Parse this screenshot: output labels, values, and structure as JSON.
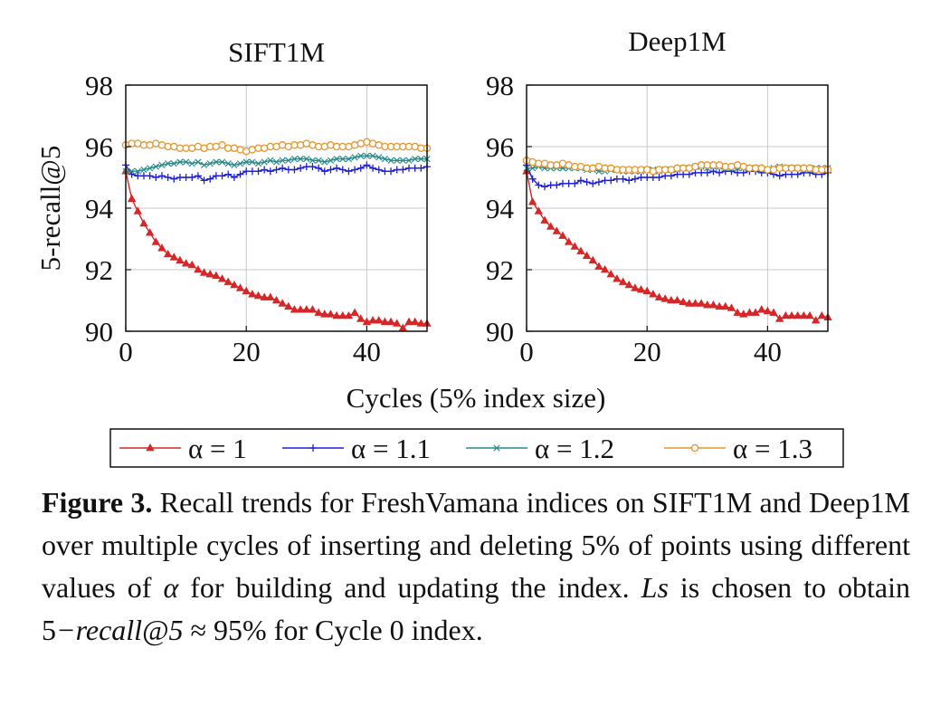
{
  "chart_data": [
    {
      "type": "line",
      "title": "SIFT1M",
      "xlabel": "Cycles (5% index size)",
      "ylabel": "5-recall@5",
      "xlim": [
        0,
        50
      ],
      "ylim": [
        90,
        98
      ],
      "xticks": [
        0,
        20,
        40
      ],
      "yticks": [
        90,
        92,
        94,
        96,
        98
      ],
      "grid": true,
      "series": [
        {
          "name": "α = 1",
          "color": "#d62728",
          "marker": "triangle",
          "x": [
            0,
            1,
            2,
            3,
            4,
            5,
            6,
            7,
            8,
            9,
            10,
            11,
            12,
            13,
            14,
            15,
            16,
            17,
            18,
            19,
            20,
            21,
            22,
            23,
            24,
            25,
            26,
            27,
            28,
            29,
            30,
            31,
            32,
            33,
            34,
            35,
            36,
            37,
            38,
            39,
            40,
            41,
            42,
            43,
            44,
            45,
            46,
            47,
            48,
            49,
            50
          ],
          "y": [
            95.2,
            94.3,
            93.9,
            93.5,
            93.2,
            92.9,
            92.7,
            92.5,
            92.4,
            92.3,
            92.2,
            92.15,
            92.0,
            91.9,
            91.85,
            91.8,
            91.7,
            91.6,
            91.5,
            91.4,
            91.3,
            91.2,
            91.15,
            91.1,
            91.1,
            91.0,
            90.9,
            90.8,
            90.7,
            90.7,
            90.7,
            90.7,
            90.6,
            90.55,
            90.55,
            90.5,
            90.5,
            90.5,
            90.6,
            90.4,
            90.3,
            90.35,
            90.35,
            90.3,
            90.3,
            90.25,
            90.1,
            90.3,
            90.3,
            90.25,
            90.25
          ]
        },
        {
          "name": "α = 1.1",
          "color": "#1f1fd6",
          "marker": "plus",
          "x": [
            0,
            1,
            2,
            3,
            4,
            5,
            6,
            7,
            8,
            9,
            10,
            11,
            12,
            13,
            14,
            15,
            16,
            17,
            18,
            19,
            20,
            21,
            22,
            23,
            24,
            25,
            26,
            27,
            28,
            29,
            30,
            31,
            32,
            33,
            34,
            35,
            36,
            37,
            38,
            39,
            40,
            41,
            42,
            43,
            44,
            45,
            46,
            47,
            48,
            49,
            50
          ],
          "y": [
            95.4,
            95.1,
            95.05,
            95.05,
            95.05,
            95.0,
            95.05,
            95.0,
            94.95,
            95.0,
            95.0,
            95.0,
            95.05,
            94.9,
            94.95,
            95.05,
            95.05,
            95.1,
            95.0,
            95.1,
            95.2,
            95.2,
            95.2,
            95.25,
            95.2,
            95.25,
            95.3,
            95.25,
            95.25,
            95.3,
            95.35,
            95.35,
            95.3,
            95.2,
            95.25,
            95.3,
            95.25,
            95.2,
            95.25,
            95.3,
            95.4,
            95.3,
            95.25,
            95.2,
            95.2,
            95.25,
            95.25,
            95.3,
            95.3,
            95.3,
            95.35
          ]
        },
        {
          "name": "α = 1.2",
          "color": "#2a8a8a",
          "marker": "cross",
          "x": [
            0,
            1,
            2,
            3,
            4,
            5,
            6,
            7,
            8,
            9,
            10,
            11,
            12,
            13,
            14,
            15,
            16,
            17,
            18,
            19,
            20,
            21,
            22,
            23,
            24,
            25,
            26,
            27,
            28,
            29,
            30,
            31,
            32,
            33,
            34,
            35,
            36,
            37,
            38,
            39,
            40,
            41,
            42,
            43,
            44,
            45,
            46,
            47,
            48,
            49,
            50
          ],
          "y": [
            95.2,
            95.2,
            95.2,
            95.25,
            95.3,
            95.35,
            95.4,
            95.45,
            95.45,
            95.5,
            95.5,
            95.45,
            95.5,
            95.4,
            95.45,
            95.5,
            95.5,
            95.45,
            95.4,
            95.45,
            95.5,
            95.5,
            95.45,
            95.5,
            95.55,
            95.5,
            95.55,
            95.55,
            95.6,
            95.6,
            95.6,
            95.55,
            95.55,
            95.5,
            95.55,
            95.6,
            95.6,
            95.6,
            95.65,
            95.7,
            95.7,
            95.7,
            95.65,
            95.6,
            95.55,
            95.55,
            95.55,
            95.55,
            95.6,
            95.6,
            95.6
          ]
        },
        {
          "name": "α = 1.3",
          "color": "#e8952a",
          "marker": "circle",
          "x": [
            0,
            1,
            2,
            3,
            4,
            5,
            6,
            7,
            8,
            9,
            10,
            11,
            12,
            13,
            14,
            15,
            16,
            17,
            18,
            19,
            20,
            21,
            22,
            23,
            24,
            25,
            26,
            27,
            28,
            29,
            30,
            31,
            32,
            33,
            34,
            35,
            36,
            37,
            38,
            39,
            40,
            41,
            42,
            43,
            44,
            45,
            46,
            47,
            48,
            49,
            50
          ],
          "y": [
            96.05,
            96.1,
            96.1,
            96.05,
            96.05,
            96.1,
            96.05,
            96.0,
            96.0,
            95.95,
            95.95,
            95.95,
            96.0,
            95.95,
            96.0,
            96.0,
            96.05,
            95.95,
            95.95,
            95.9,
            95.85,
            95.9,
            95.95,
            95.95,
            96.0,
            96.0,
            96.05,
            96.0,
            96.05,
            96.05,
            96.1,
            96.05,
            96.0,
            96.0,
            96.05,
            96.0,
            96.0,
            96.0,
            96.05,
            96.1,
            96.15,
            96.1,
            96.05,
            96.0,
            96.0,
            96.0,
            96.0,
            96.0,
            96.0,
            95.95,
            95.95
          ]
        }
      ]
    },
    {
      "type": "line",
      "title": "Deep1M",
      "xlabel": "Cycles (5% index size)",
      "ylabel": "",
      "xlim": [
        0,
        50
      ],
      "ylim": [
        90,
        98
      ],
      "xticks": [
        0,
        20,
        40
      ],
      "yticks": [
        90,
        92,
        94,
        96,
        98
      ],
      "grid": true,
      "series": [
        {
          "name": "α = 1",
          "color": "#d62728",
          "marker": "triangle",
          "x": [
            0,
            1,
            2,
            3,
            4,
            5,
            6,
            7,
            8,
            9,
            10,
            11,
            12,
            13,
            14,
            15,
            16,
            17,
            18,
            19,
            20,
            21,
            22,
            23,
            24,
            25,
            26,
            27,
            28,
            29,
            30,
            31,
            32,
            33,
            34,
            35,
            36,
            37,
            38,
            39,
            40,
            41,
            42,
            43,
            44,
            45,
            46,
            47,
            48,
            49,
            50
          ],
          "y": [
            95.2,
            94.2,
            93.9,
            93.6,
            93.4,
            93.25,
            93.1,
            92.9,
            92.75,
            92.6,
            92.45,
            92.3,
            92.1,
            92.0,
            91.85,
            91.7,
            91.6,
            91.5,
            91.4,
            91.35,
            91.3,
            91.2,
            91.1,
            91.05,
            91.0,
            91.0,
            90.95,
            90.9,
            90.9,
            90.9,
            90.85,
            90.85,
            90.8,
            90.8,
            90.75,
            90.6,
            90.55,
            90.6,
            90.6,
            90.7,
            90.65,
            90.6,
            90.4,
            90.5,
            90.5,
            90.5,
            90.5,
            90.5,
            90.35,
            90.5,
            90.45
          ]
        },
        {
          "name": "α = 1.1",
          "color": "#1f1fd6",
          "marker": "plus",
          "x": [
            0,
            1,
            2,
            3,
            4,
            5,
            6,
            7,
            8,
            9,
            10,
            11,
            12,
            13,
            14,
            15,
            16,
            17,
            18,
            19,
            20,
            21,
            22,
            23,
            24,
            25,
            26,
            27,
            28,
            29,
            30,
            31,
            32,
            33,
            34,
            35,
            36,
            37,
            38,
            39,
            40,
            41,
            42,
            43,
            44,
            45,
            46,
            47,
            48,
            49,
            50
          ],
          "y": [
            95.4,
            94.95,
            94.75,
            94.7,
            94.75,
            94.75,
            94.8,
            94.8,
            94.8,
            94.9,
            94.85,
            94.8,
            94.85,
            94.9,
            94.9,
            94.95,
            94.95,
            94.9,
            94.95,
            95.0,
            95.0,
            95.0,
            95.0,
            95.05,
            95.05,
            95.1,
            95.1,
            95.1,
            95.15,
            95.15,
            95.15,
            95.2,
            95.15,
            95.2,
            95.2,
            95.15,
            95.15,
            95.2,
            95.2,
            95.15,
            95.15,
            95.1,
            95.05,
            95.1,
            95.1,
            95.1,
            95.15,
            95.15,
            95.1,
            95.1,
            95.15
          ]
        },
        {
          "name": "α = 1.2",
          "color": "#2a8a8a",
          "marker": "cross",
          "x": [
            0,
            1,
            2,
            3,
            4,
            5,
            6,
            7,
            8,
            9,
            10,
            11,
            12,
            13,
            14,
            15,
            16,
            17,
            18,
            19,
            20,
            21,
            22,
            23,
            24,
            25,
            26,
            27,
            28,
            29,
            30,
            31,
            32,
            33,
            34,
            35,
            36,
            37,
            38,
            39,
            40,
            41,
            42,
            43,
            44,
            45,
            46,
            47,
            48,
            49,
            50
          ],
          "y": [
            95.3,
            95.3,
            95.35,
            95.3,
            95.3,
            95.3,
            95.3,
            95.3,
            95.3,
            95.3,
            95.25,
            95.25,
            95.2,
            95.2,
            95.25,
            95.25,
            95.2,
            95.2,
            95.2,
            95.2,
            95.25,
            95.25,
            95.2,
            95.25,
            95.25,
            95.25,
            95.3,
            95.3,
            95.35,
            95.35,
            95.3,
            95.35,
            95.35,
            95.3,
            95.3,
            95.3,
            95.3,
            95.3,
            95.3,
            95.25,
            95.25,
            95.3,
            95.35,
            95.3,
            95.3,
            95.3,
            95.25,
            95.25,
            95.3,
            95.3,
            95.3
          ]
        },
        {
          "name": "α = 1.3",
          "color": "#e8952a",
          "marker": "circle",
          "x": [
            0,
            1,
            2,
            3,
            4,
            5,
            6,
            7,
            8,
            9,
            10,
            11,
            12,
            13,
            14,
            15,
            16,
            17,
            18,
            19,
            20,
            21,
            22,
            23,
            24,
            25,
            26,
            27,
            28,
            29,
            30,
            31,
            32,
            33,
            34,
            35,
            36,
            37,
            38,
            39,
            40,
            41,
            42,
            43,
            44,
            45,
            46,
            47,
            48,
            49,
            50
          ],
          "y": [
            95.55,
            95.5,
            95.45,
            95.45,
            95.4,
            95.4,
            95.45,
            95.4,
            95.35,
            95.35,
            95.3,
            95.3,
            95.35,
            95.3,
            95.3,
            95.25,
            95.25,
            95.25,
            95.25,
            95.25,
            95.25,
            95.2,
            95.25,
            95.25,
            95.25,
            95.3,
            95.3,
            95.3,
            95.35,
            95.4,
            95.4,
            95.4,
            95.4,
            95.35,
            95.35,
            95.4,
            95.35,
            95.3,
            95.3,
            95.3,
            95.25,
            95.25,
            95.3,
            95.3,
            95.3,
            95.3,
            95.3,
            95.3,
            95.25,
            95.25,
            95.25
          ]
        }
      ]
    }
  ],
  "legend": {
    "items": [
      "α = 1",
      "α = 1.1",
      "α = 1.2",
      "α = 1.3"
    ]
  },
  "caption": {
    "label": "Figure 3.",
    "text_1": " Recall trends for FreshVamana indices on SIFT1M and Deep1M over multiple cycles of inserting and deleting 5% of points using different values of ",
    "alpha": "α",
    "text_2": " for building and updating the index. ",
    "ls": "Ls",
    "text_3": " is chosen to obtain 5",
    "recall_expr": "−recall@5",
    "text_4": " ≈ 95% for Cycle 0 index."
  }
}
